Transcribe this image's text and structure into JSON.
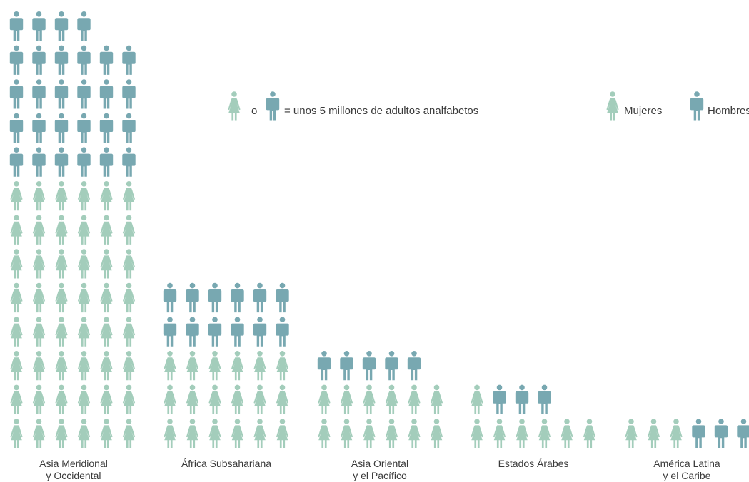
{
  "colors": {
    "women": "#a3cdbb",
    "men": "#78a8b1",
    "text": "#3a3a3a"
  },
  "legend": {
    "connector": "o",
    "unit_text": "= unos 5 millones de adultos analfabetos",
    "women_label": "Mujeres",
    "men_label": "Hombres"
  },
  "chart_data": {
    "type": "pictogram",
    "unit": "≈ 5 millones de adultos analfabetos por icono",
    "series_order": [
      "Mujeres",
      "Hombres"
    ],
    "categories": [
      {
        "label_lines": [
          "Asia Meridional",
          "y Occidental"
        ],
        "women_icons": 48,
        "men_icons": 28
      },
      {
        "label_lines": [
          "África Subsahariana"
        ],
        "women_icons": 18,
        "men_icons": 12
      },
      {
        "label_lines": [
          "Asia Oriental",
          "y el Pacífico"
        ],
        "women_icons": 12,
        "men_icons": 5
      },
      {
        "label_lines": [
          "Estados Árabes"
        ],
        "women_icons": 7,
        "men_icons": 3
      },
      {
        "label_lines": [
          "América Latina",
          "y el Caribe"
        ],
        "women_icons": 3,
        "men_icons": 3
      }
    ]
  }
}
